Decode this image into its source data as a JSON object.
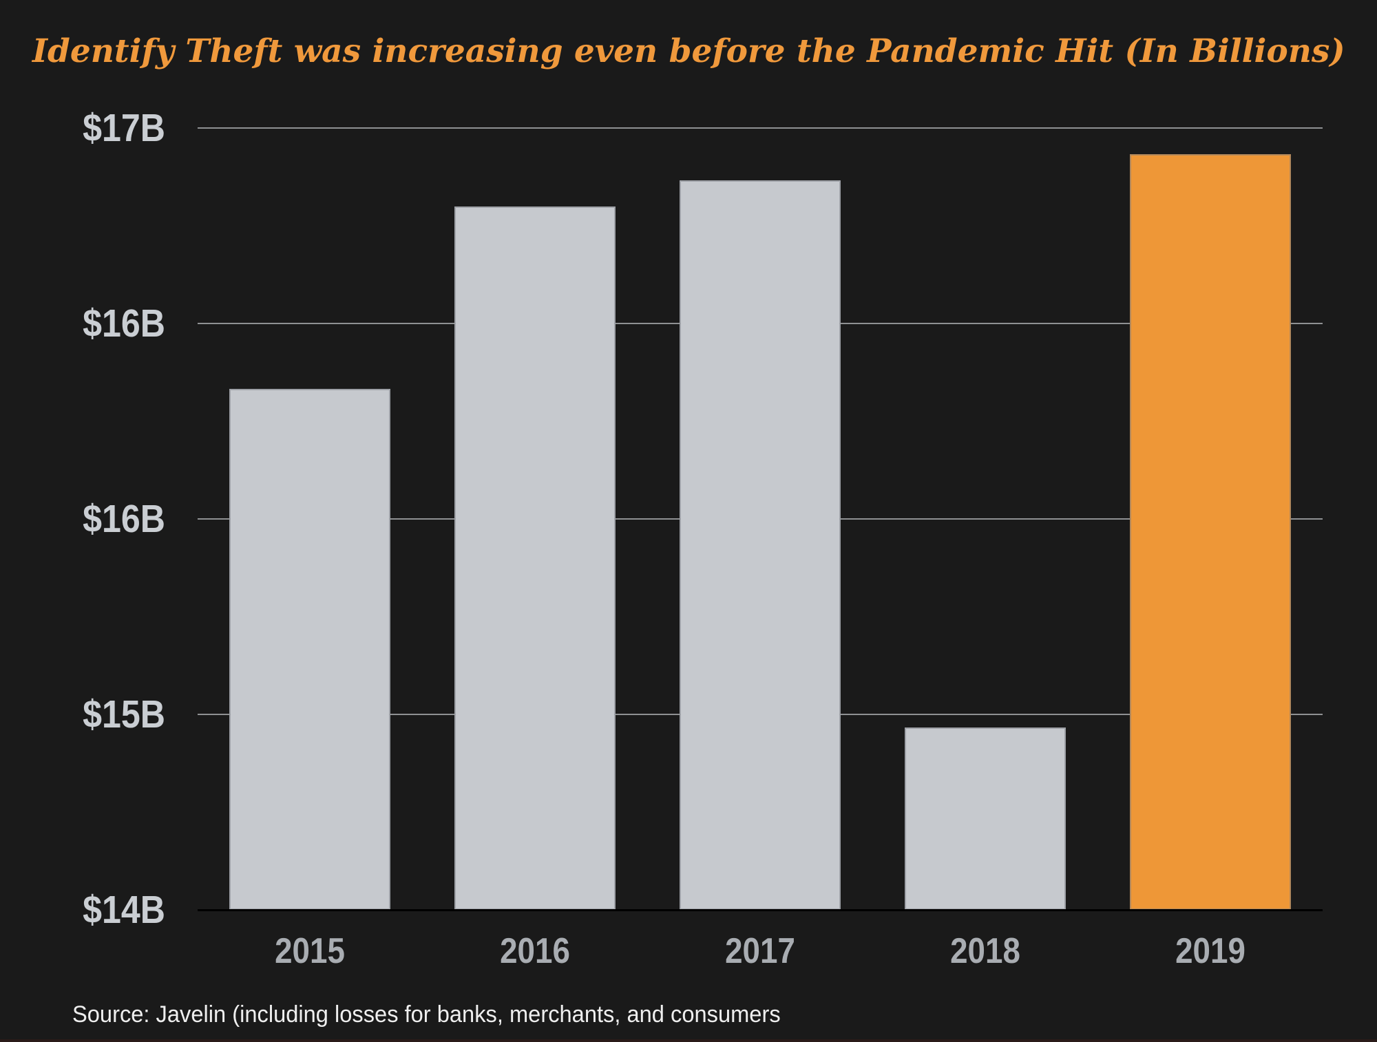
{
  "title": "Identify Theft was increasing even before the Pandemic Hit (In Billions)",
  "source_note": "Source: Javelin (including losses for banks, merchants, and consumers",
  "colors": {
    "background": "#1a1a1a",
    "title": "#f0993c",
    "bar_default": "#c6c9ce",
    "bar_highlight": "#ee9737",
    "gridline": "#8f9193",
    "baseline": "#000000",
    "y_tick_label": "#caced3",
    "x_tick_label": "#a9adb2",
    "source_text": "#efefef",
    "bottom_border": "#2a1b19"
  },
  "chart_data": {
    "type": "bar",
    "title": "Identify Theft was increasing even before the Pandemic Hit (In Billions)",
    "categories": [
      "2015",
      "2016",
      "2017",
      "2018",
      "2019"
    ],
    "values": [
      16.0,
      16.7,
      16.8,
      14.7,
      16.9
    ],
    "unit": "USD billions",
    "xlabel": "",
    "ylabel": "",
    "ylim": [
      14,
      17
    ],
    "y_ticks": [
      {
        "value": 17.0,
        "label": "$17B"
      },
      {
        "value": 16.25,
        "label": "$16B"
      },
      {
        "value": 15.5,
        "label": "$16B"
      },
      {
        "value": 14.75,
        "label": "$15B"
      },
      {
        "value": 14.0,
        "label": "$14B"
      }
    ],
    "grid": "horizontal gridlines on",
    "legend": "none",
    "highlight_category": "2019",
    "source": "Source: Javelin (including losses for banks, merchants, and consumers"
  }
}
